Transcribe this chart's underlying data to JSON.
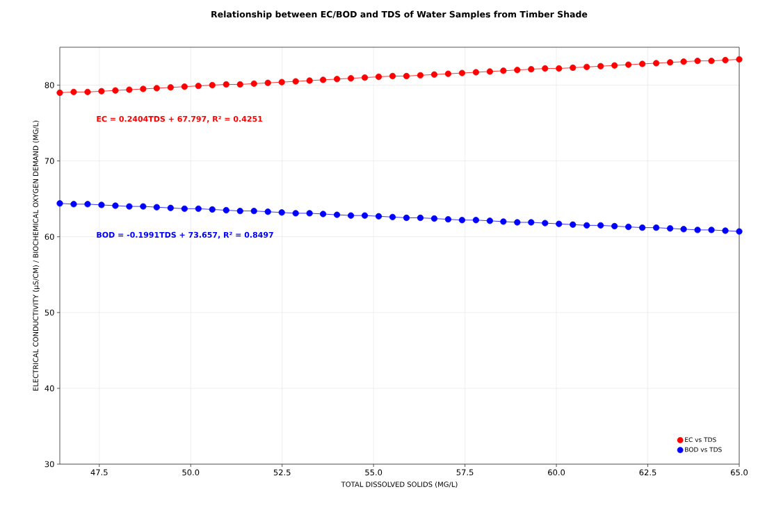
{
  "chart_data": {
    "type": "line",
    "title": "Relationship between EC/BOD and TDS of Water Samples from Timber Shade",
    "xlabel": "TOTAL DISSOLVED SOLIDS (MG/L)",
    "ylabel": "ELECTRICAL CONDUCTIVITY (µS/CM) / BIOCHEMICAL OXYGEN DEMAND (MG/L)",
    "x": [
      46.42,
      46.8,
      47.18,
      47.56,
      47.94,
      48.32,
      48.7,
      49.07,
      49.45,
      49.83,
      50.21,
      50.59,
      50.97,
      51.35,
      51.73,
      52.11,
      52.49,
      52.87,
      53.25,
      53.62,
      54.0,
      54.38,
      54.76,
      55.14,
      55.52,
      55.9,
      56.28,
      56.66,
      57.04,
      57.42,
      57.8,
      58.18,
      58.55,
      58.93,
      59.31,
      59.69,
      60.07,
      60.45,
      60.83,
      61.21,
      61.59,
      61.97,
      62.35,
      62.73,
      63.11,
      63.48,
      63.86,
      64.24,
      64.62,
      65.0
    ],
    "series": [
      {
        "name": "EC vs TDS",
        "color": "#ff0000",
        "values": [
          79.0,
          79.1,
          79.1,
          79.2,
          79.3,
          79.4,
          79.5,
          79.6,
          79.7,
          79.8,
          79.9,
          80.0,
          80.1,
          80.1,
          80.2,
          80.3,
          80.4,
          80.5,
          80.6,
          80.7,
          80.8,
          80.9,
          81.0,
          81.1,
          81.2,
          81.2,
          81.3,
          81.4,
          81.5,
          81.6,
          81.7,
          81.8,
          81.9,
          82.0,
          82.1,
          82.2,
          82.2,
          82.3,
          82.4,
          82.5,
          82.6,
          82.7,
          82.8,
          82.9,
          83.0,
          83.1,
          83.2,
          83.2,
          83.3,
          83.4
        ]
      },
      {
        "name": "BOD vs TDS",
        "color": "#0000ff",
        "values": [
          64.4,
          64.3,
          64.3,
          64.2,
          64.1,
          64.0,
          64.0,
          63.9,
          63.8,
          63.7,
          63.7,
          63.6,
          63.5,
          63.4,
          63.4,
          63.3,
          63.2,
          63.1,
          63.1,
          63.0,
          62.9,
          62.8,
          62.8,
          62.7,
          62.6,
          62.5,
          62.5,
          62.4,
          62.3,
          62.2,
          62.2,
          62.1,
          62.0,
          61.9,
          61.9,
          61.8,
          61.7,
          61.6,
          61.5,
          61.5,
          61.4,
          61.3,
          61.2,
          61.2,
          61.1,
          61.0,
          60.9,
          60.9,
          60.8,
          60.7
        ]
      }
    ],
    "annotations": [
      "EC = 0.2404TDS + 67.797,  R² = 0.4251",
      "BOD = -0.1991TDS + 73.657,  R² = 0.8497"
    ],
    "xlim": [
      46.42,
      65
    ],
    "xticks": [
      {
        "value": 47.5,
        "label": "47.5"
      },
      {
        "value": 50,
        "label": "50.0"
      },
      {
        "value": 52.5,
        "label": "52.5"
      },
      {
        "value": 55,
        "label": "55.0"
      },
      {
        "value": 57.5,
        "label": "57.5"
      },
      {
        "value": 60,
        "label": "60.0"
      },
      {
        "value": 62.5,
        "label": "62.5"
      },
      {
        "value": 65,
        "label": "65.0"
      }
    ],
    "ylim": [
      30,
      85
    ],
    "yticks": [
      30,
      40,
      50,
      60,
      70,
      80
    ],
    "grid": true,
    "legend": "bottom right",
    "marker": "circle",
    "line_style": "solid"
  }
}
